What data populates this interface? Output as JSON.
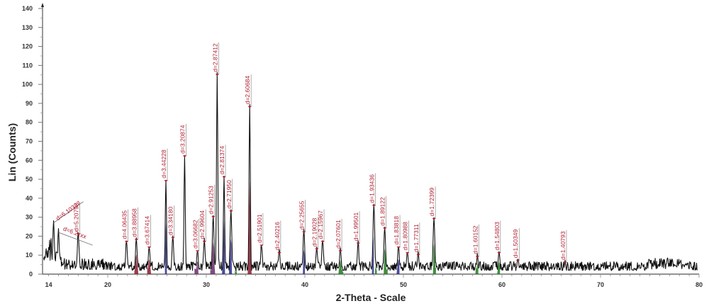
{
  "chart_data": {
    "type": "line",
    "title": "",
    "xlabel": "2-Theta - Scale",
    "ylabel": "Lin (Counts)",
    "xlim": [
      13.4,
      80
    ],
    "ylim": [
      0,
      140
    ],
    "x_ticks": [
      14,
      20,
      30,
      40,
      50,
      60,
      70,
      80
    ],
    "y_ticks": [
      0,
      10,
      20,
      30,
      40,
      50,
      60,
      70,
      80,
      90,
      100,
      110,
      120,
      130,
      140
    ],
    "grid": false,
    "legend": null,
    "peak_marker_color": "#b01c2e",
    "line_color": "#111111",
    "phase_fill_colors": [
      "#8b1a2b",
      "#2a2a8c",
      "#1f7a1f",
      "#6a2a6a"
    ],
    "peaks": [
      {
        "x": 14.5,
        "y": 27,
        "label": "d=6.10337"
      },
      {
        "x": 15.0,
        "y": 22,
        "label": "d=6.2xxx"
      },
      {
        "x": 17.0,
        "y": 21,
        "label": "d=5.20798"
      },
      {
        "x": 21.9,
        "y": 17,
        "label": "d=4.06435"
      },
      {
        "x": 22.9,
        "y": 18,
        "label": "d=3.88958"
      },
      {
        "x": 24.2,
        "y": 14,
        "label": "d=3.67414"
      },
      {
        "x": 25.9,
        "y": 49,
        "label": "d=3.44228"
      },
      {
        "x": 26.6,
        "y": 19,
        "label": "d=3.34180"
      },
      {
        "x": 27.8,
        "y": 62,
        "label": "d=3.20874"
      },
      {
        "x": 29.1,
        "y": 12,
        "label": "d=3.06682"
      },
      {
        "x": 29.8,
        "y": 17,
        "label": "d=2.99604"
      },
      {
        "x": 30.7,
        "y": 30,
        "label": "d=2.91253"
      },
      {
        "x": 31.1,
        "y": 105,
        "label": "d=2.87412"
      },
      {
        "x": 31.8,
        "y": 51,
        "label": "d=2.81374"
      },
      {
        "x": 32.5,
        "y": 33,
        "label": "d=2.71950"
      },
      {
        "x": 34.4,
        "y": 88,
        "label": "d=2.60684"
      },
      {
        "x": 35.6,
        "y": 15,
        "label": "d=2.51901"
      },
      {
        "x": 37.4,
        "y": 11,
        "label": "d=2.40216"
      },
      {
        "x": 39.9,
        "y": 22,
        "label": "d=2.25655"
      },
      {
        "x": 41.2,
        "y": 13,
        "label": "d=2.19028"
      },
      {
        "x": 41.8,
        "y": 17,
        "label": "d=2.15967"
      },
      {
        "x": 43.6,
        "y": 12,
        "label": "d=2.07601"
      },
      {
        "x": 45.4,
        "y": 16,
        "label": "d=1.99501"
      },
      {
        "x": 47.0,
        "y": 36,
        "label": "d=1.93436"
      },
      {
        "x": 48.1,
        "y": 24,
        "label": "d=1.89122"
      },
      {
        "x": 49.5,
        "y": 14,
        "label": "d=1.83818"
      },
      {
        "x": 50.4,
        "y": 11,
        "label": "d=1.80988"
      },
      {
        "x": 51.5,
        "y": 10,
        "label": "d=1.77311"
      },
      {
        "x": 53.1,
        "y": 29,
        "label": "d=1.72399"
      },
      {
        "x": 57.5,
        "y": 9,
        "label": "d=1.60152"
      },
      {
        "x": 59.7,
        "y": 11,
        "label": "d=1.54803"
      },
      {
        "x": 61.6,
        "y": 7,
        "label": "d=1.50349"
      },
      {
        "x": 66.4,
        "y": 6,
        "label": "d=1.40793"
      }
    ],
    "background_level": [
      {
        "x_from": 13.4,
        "x_to": 20,
        "y": 5
      },
      {
        "x_from": 20,
        "x_to": 55,
        "y": 4
      },
      {
        "x_from": 55,
        "x_to": 80,
        "y": 4
      }
    ]
  }
}
